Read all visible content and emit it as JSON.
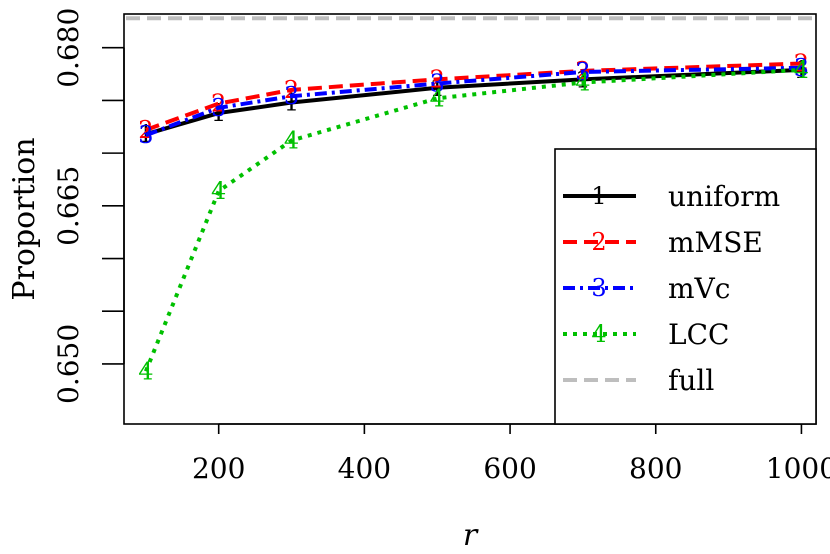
{
  "chart_data": {
    "type": "line",
    "title": "",
    "xlabel": "r",
    "ylabel": "Proportion",
    "xlim": [
      70,
      1020
    ],
    "ylim": [
      0.6443,
      0.6832
    ],
    "x_ticks": [
      200,
      400,
      600,
      800,
      1000
    ],
    "x_tick_labels": [
      "200",
      "400",
      "600",
      "800",
      "1000"
    ],
    "y_ticks": [
      0.65,
      0.655,
      0.66,
      0.665,
      0.67,
      0.675,
      0.68
    ],
    "y_tick_labels": [
      "0.650",
      "",
      "",
      "0.665",
      "",
      "",
      "0.680"
    ],
    "x": [
      100,
      200,
      300,
      500,
      700,
      1000
    ],
    "series": [
      {
        "name": "uniform",
        "marker": "1",
        "color": "#000000",
        "dash": "solid",
        "values": [
          0.6718,
          0.6738,
          0.6748,
          0.6762,
          0.677,
          0.6779
        ]
      },
      {
        "name": "mMSE",
        "marker": "2",
        "color": "#ff0000",
        "dash": "long-dash",
        "values": [
          0.6722,
          0.6747,
          0.676,
          0.677,
          0.6778,
          0.6785
        ]
      },
      {
        "name": "mVc",
        "marker": "3",
        "color": "#0000ff",
        "dash": "dash-dot",
        "values": [
          0.6717,
          0.6743,
          0.6754,
          0.6766,
          0.6777,
          0.6781
        ]
      },
      {
        "name": "LCC",
        "marker": "4",
        "color": "#00c000",
        "dash": "dotted",
        "values": [
          0.6493,
          0.6664,
          0.6712,
          0.6752,
          0.6767,
          0.6779
        ]
      }
    ],
    "reference_line": {
      "name": "full",
      "value": 0.6828,
      "color": "#bebebe",
      "dash": "long-dash"
    },
    "legend": {
      "placement": "bottom-right",
      "entries": [
        {
          "marker": "1",
          "label": "uniform"
        },
        {
          "marker": "2",
          "label": "mMSE"
        },
        {
          "marker": "3",
          "label": "mVc"
        },
        {
          "marker": "4",
          "label": "LCC"
        },
        {
          "marker": "",
          "label": "full"
        }
      ]
    },
    "grid": false
  }
}
